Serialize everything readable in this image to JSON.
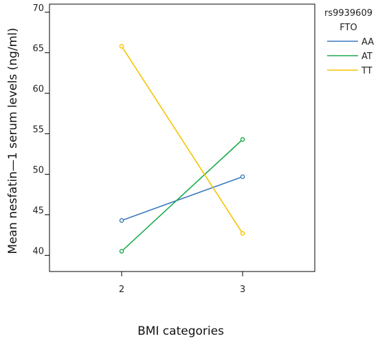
{
  "chart_data": {
    "type": "line",
    "xlabel": "BMI categories",
    "ylabel": "Mean nesfatin—1 serum levels (ng/ml)",
    "categories": [
      "2",
      "3"
    ],
    "ylim": [
      38,
      71
    ],
    "y_ticks": [
      "40",
      "45",
      "50",
      "55",
      "60",
      "65",
      "70"
    ],
    "legend": {
      "title_line1": "rs9939609",
      "title_line2": "FTO",
      "placement": "right"
    },
    "series": [
      {
        "name": "AA",
        "color": "#3a7abf",
        "values": [
          44.3,
          49.7
        ]
      },
      {
        "name": "AT",
        "color": "#1aab4a",
        "values": [
          40.5,
          54.3
        ]
      },
      {
        "name": "TT",
        "color": "#f5c400",
        "values": [
          65.8,
          42.7
        ]
      }
    ],
    "grid": false
  }
}
